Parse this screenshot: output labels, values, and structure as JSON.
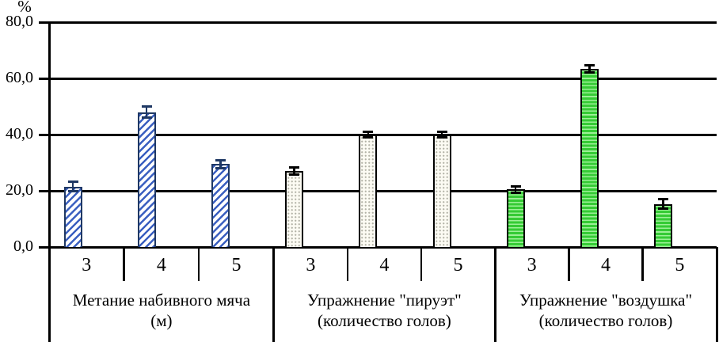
{
  "chart_data": {
    "type": "bar",
    "title": "",
    "ylabel": "%",
    "ylim": [
      0,
      80
    ],
    "grid": true,
    "legend": "none",
    "y_ticks": [
      {
        "value": 80,
        "label": "80,0"
      },
      {
        "value": 60,
        "label": "60,0"
      },
      {
        "value": 40,
        "label": "40,0"
      },
      {
        "value": 20,
        "label": "20,0"
      },
      {
        "value": 0,
        "label": "0,0"
      }
    ],
    "axis_color": "#000000",
    "error_bar_style": "caps-both-ends",
    "groups": [
      {
        "label_line1": "Метание набивного мяча",
        "label_line2": "(м)",
        "categories": [
          "3",
          "4",
          "5"
        ],
        "values": [
          21.5,
          48.0,
          29.5
        ],
        "errors": [
          2.2,
          2.4,
          1.8
        ],
        "pattern": "diagonal-stripes",
        "colors": {
          "fill": "#ffffff",
          "stripe": "#3a5fc0",
          "border": "#1f3864"
        }
      },
      {
        "label_line1": "Упражнение \"пируэт\"",
        "label_line2": "(количество голов)",
        "categories": [
          "3",
          "4",
          "5"
        ],
        "values": [
          27.0,
          40.0,
          40.0
        ],
        "errors": [
          1.7,
          1.5,
          1.5
        ],
        "pattern": "dots",
        "colors": {
          "fill": "#fcfbf3",
          "stripe": "#b2b2a6",
          "border": "#000000"
        }
      },
      {
        "label_line1": "Упражнение \"воздушка\"",
        "label_line2": "(количество голов)",
        "categories": [
          "3",
          "4",
          "5"
        ],
        "values": [
          20.5,
          63.5,
          15.3
        ],
        "errors": [
          1.5,
          1.7,
          2.2
        ],
        "pattern": "horizontal-stripes",
        "colors": {
          "fill": "#35cb35",
          "stripe": "#9cf096",
          "border": "#000000"
        }
      }
    ]
  }
}
